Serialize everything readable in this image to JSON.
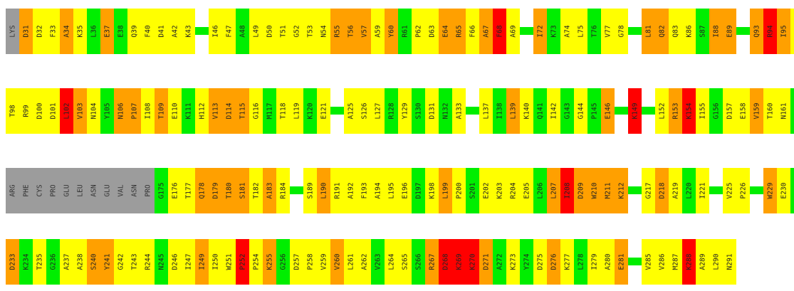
{
  "legend_colors": {
    "Y": "#ffff00",
    "O": "#ffa000",
    "G": "#00ee00",
    "R": "#ff0000",
    "X": "#9c9c9c",
    "gap": "#00ee00"
  },
  "rows": [
    [
      "LYS:X",
      "D31:O",
      "D32:Y",
      "F33:Y",
      "A34:O",
      "K35:Y",
      "L36:G",
      "E37:O",
      "E38:G",
      "Q39:Y",
      "F40:Y",
      "D41:Y",
      "A42:Y",
      "K43:Y",
      "-",
      "I46:Y",
      "F47:Y",
      "A48:G",
      "L49:Y",
      "D50:Y",
      "T51:Y",
      "G52:Y",
      "T53:Y",
      "N54:Y",
      "R55:O",
      "T56:O",
      "V57:O",
      "A59:Y",
      "Y60:O",
      "R61:G",
      "P62:Y",
      "D63:Y",
      "E64:O",
      "R65:O",
      "F66:Y",
      "A67:O",
      "F68:R",
      "A69:Y",
      "-",
      "I72:O",
      "K73:G",
      "A74:Y",
      "L75:Y",
      "T76:G",
      "V77:Y",
      "G78:Y",
      "-",
      "L81:O",
      "Q82:O",
      "Q83:Y",
      "K86:Y",
      "S87:G",
      "I88:O",
      "E89:O",
      "-",
      "Q93:O",
      "R94:R",
      "I95:O",
      "T96:Y",
      "Y97:G"
    ],
    [
      "T98:Y",
      "R99:Y",
      "D100:Y",
      "D101:Y",
      "L102:R",
      "V103:O",
      "N104:Y",
      "Y105:G",
      "N106:O",
      "P107:O",
      "I108:Y",
      "T109:O",
      "E110:Y",
      "K111:G",
      "H112:Y",
      "V113:O",
      "D114:O",
      "T115:O",
      "G116:Y",
      "M117:G",
      "T118:Y",
      "L119:Y",
      "K120:G",
      "E121:Y",
      "-",
      "A125:Y",
      "S126:Y",
      "L127:Y",
      "R128:G",
      "Y129:Y",
      "S130:G",
      "D131:Y",
      "N132:G",
      "A133:Y",
      "-",
      "L137:Y",
      "I138:G",
      "L139:O",
      "K140:Y",
      "Q141:G",
      "I142:Y",
      "G143:G",
      "G144:Y",
      "P145:G",
      "E146:O",
      "-",
      "K149:R",
      "-",
      "L152:Y",
      "R153:O",
      "K154:R",
      "I155:Y",
      "G156:G",
      "D157:Y",
      "E158:Y",
      "V159:O",
      "T160:Y",
      "N161:Y",
      "P162:G",
      "E163:O"
    ],
    [
      "ARG:X",
      "PHE:X",
      "CYS:X",
      "PRO:X",
      "GLU:X",
      "LEU:X",
      "ASN:X",
      "GLU:X",
      "VAL:X",
      "ASN:X",
      "PRO:X",
      "G175:G",
      "E176:Y",
      "T177:Y",
      "Q178:O",
      "D179:O",
      "T180:O",
      "S181:O",
      "T182:Y",
      "A183:O",
      "R184:Y",
      "-",
      "S189:Y",
      "L190:O",
      "R191:Y",
      "A192:Y",
      "F193:Y",
      "A194:Y",
      "L195:Y",
      "E196:Y",
      "D197:G",
      "K198:Y",
      "L199:O",
      "P200:Y",
      "S201:G",
      "E202:Y",
      "K203:Y",
      "R204:Y",
      "E205:Y",
      "L206:G",
      "L207:O",
      "I208:R",
      "D209:O",
      "W210:O",
      "M211:O",
      "K212:O",
      "-",
      "G217:Y",
      "D218:O",
      "A219:Y",
      "L220:G",
      "I221:Y",
      "-",
      "V225:Y",
      "P226:Y",
      "-",
      "W229:O",
      "E230:Y",
      "V231:G",
      "A232:Y"
    ],
    [
      "D233:O",
      "K234:G",
      "T235:Y",
      "G236:G",
      "A237:Y",
      "A238:Y",
      "S240:O",
      "Y241:O",
      "G242:Y",
      "T243:Y",
      "R244:Y",
      "N245:G",
      "D246:Y",
      "I247:Y",
      "I249:O",
      "I250:Y",
      "W251:Y",
      "P252:R",
      "P254:Y",
      "K255:O",
      "G256:G",
      "D257:Y",
      "P258:Y",
      "V259:Y",
      "V260:O",
      "L261:Y",
      "A262:Y",
      "V263:G",
      "L264:Y",
      "S265:Y",
      "S266:G",
      "R267:O",
      "D268:R",
      "K269:R",
      "K270:R",
      "D271:O",
      "A272:G",
      "K273:Y",
      "Y274:G",
      "D275:Y",
      "D276:O",
      "K277:Y",
      "L278:G",
      "I279:Y",
      "A280:Y",
      "E281:O",
      "-",
      "V285:Y",
      "V286:Y",
      "M287:Y",
      "K288:R",
      "A289:Y",
      "L290:Y",
      "N291:Y"
    ]
  ]
}
